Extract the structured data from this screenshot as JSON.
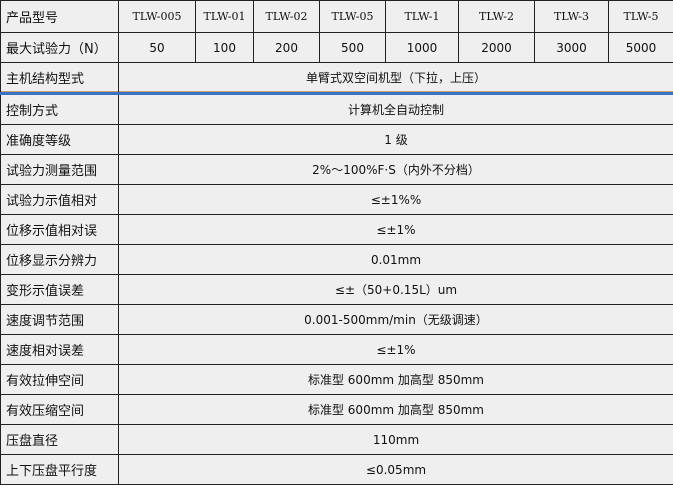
{
  "table": {
    "header_label": "产品型号",
    "models": [
      "TLW-005",
      "TLW-01",
      "TLW-02",
      "TLW-05",
      "TLW-1",
      "TLW-2",
      "TLW-3",
      "TLW-5"
    ],
    "force_label": "最大试验力（N）",
    "forces": [
      "50",
      "100",
      "200",
      "500",
      "1000",
      "2000",
      "3000",
      "5000"
    ],
    "rows": [
      {
        "label": "主机结构型式",
        "value": "单臂式双空间机型（下拉，上压）"
      },
      {
        "label": "控制方式",
        "value": "计算机全自动控制"
      },
      {
        "label": "准确度等级",
        "value": "1 级"
      },
      {
        "label": "试验力测量范围",
        "value": "2%～100%F·S（内外不分档）"
      },
      {
        "label": "试验力示值相对",
        "value": "≤±1%%"
      },
      {
        "label": "位移示值相对误",
        "value": "≤±1%"
      },
      {
        "label": "位移显示分辨力",
        "value": "0.01mm"
      },
      {
        "label": "变形示值误差",
        "value": "≤±（50+0.15L）um"
      },
      {
        "label": "速度调节范围",
        "value": "0.001-500mm/min（无级调速）"
      },
      {
        "label": "速度相对误差",
        "value": "≤±1%"
      },
      {
        "label": "有效拉伸空间",
        "value": "标准型 600mm 加高型 850mm"
      },
      {
        "label": "有效压缩空间",
        "value": "标准型 600mm 加高型 850mm"
      },
      {
        "label": "压盘直径",
        "value": "110mm"
      },
      {
        "label": "上下压盘平行度",
        "value": "≤0.05mm"
      }
    ]
  },
  "colors": {
    "accent_line": "#3b73c4",
    "border": "#222222",
    "background": "#efefef"
  }
}
